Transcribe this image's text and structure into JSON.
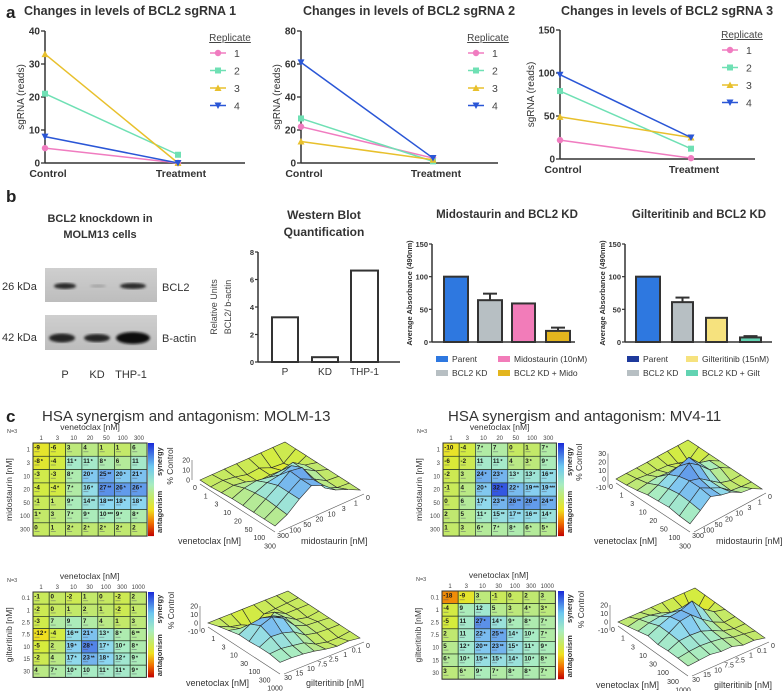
{
  "panel_labels": {
    "a": "a",
    "b": "b",
    "c": "c"
  },
  "blot": {
    "title": [
      "BCL2 knockdown in",
      "MOLM13 cells"
    ],
    "markers": [
      "26 kDa",
      "42 kDa"
    ],
    "proteins": [
      "BCL2",
      "B-actin"
    ],
    "lanes": [
      "P",
      "KD",
      "THP-1"
    ]
  },
  "panel_c_titles": [
    "HSA  synergism and antagonism: MOLM-13",
    "HSA  synergism and antagonism: MV4-11"
  ],
  "chart_data": [
    {
      "type": "line",
      "title": "Changes in levels of BCL2 sgRNA 1",
      "ylabel": "sgRNA (reads)",
      "categories": [
        "Control",
        "Treatment"
      ],
      "ylim": [
        0,
        40
      ],
      "yticks": [
        0,
        10,
        20,
        30,
        40
      ],
      "legend_title": "Replicate",
      "series": [
        {
          "name": "1",
          "color": "#f07cc0",
          "marker": "circle",
          "values": [
            4.5,
            0
          ]
        },
        {
          "name": "2",
          "color": "#6fe0b4",
          "marker": "square",
          "values": [
            21,
            2.5
          ]
        },
        {
          "name": "3",
          "color": "#e8c02c",
          "marker": "triangle-up",
          "values": [
            33,
            0
          ]
        },
        {
          "name": "4",
          "color": "#2a56d6",
          "marker": "triangle-down",
          "values": [
            8,
            0
          ]
        }
      ]
    },
    {
      "type": "line",
      "title": "Changes in levels of BCL2 sgRNA 2",
      "ylabel": "sgRNA (reads)",
      "categories": [
        "Control",
        "Treatment"
      ],
      "ylim": [
        0,
        80
      ],
      "yticks": [
        0,
        20,
        40,
        60,
        80
      ],
      "legend_title": "Replicate",
      "series": [
        {
          "name": "1",
          "color": "#f07cc0",
          "marker": "circle",
          "values": [
            22,
            3
          ]
        },
        {
          "name": "2",
          "color": "#6fe0b4",
          "marker": "square",
          "values": [
            27,
            1
          ]
        },
        {
          "name": "3",
          "color": "#e8c02c",
          "marker": "triangle-up",
          "values": [
            13,
            2
          ]
        },
        {
          "name": "4",
          "color": "#2a56d6",
          "marker": "triangle-down",
          "values": [
            61,
            3
          ]
        }
      ]
    },
    {
      "type": "line",
      "title": "Changes in levels of BCL2 sgRNA 3",
      "ylabel": "sgRNA (reads)",
      "categories": [
        "Control",
        "Treatment"
      ],
      "ylim": [
        0,
        150
      ],
      "yticks": [
        0,
        50,
        100,
        150
      ],
      "legend_title": "Replicate",
      "series": [
        {
          "name": "1",
          "color": "#f07cc0",
          "marker": "circle",
          "values": [
            22,
            1
          ]
        },
        {
          "name": "2",
          "color": "#6fe0b4",
          "marker": "square",
          "values": [
            79,
            12
          ]
        },
        {
          "name": "3",
          "color": "#e8c02c",
          "marker": "triangle-up",
          "values": [
            49,
            25
          ]
        },
        {
          "name": "4",
          "color": "#2a56d6",
          "marker": "triangle-down",
          "values": [
            98,
            25
          ]
        }
      ]
    },
    {
      "type": "bar",
      "title": [
        "Western Blot",
        "Quantification"
      ],
      "ylabel": [
        "Relative Units",
        "BCL2/ b-actin"
      ],
      "categories": [
        "P",
        "KD",
        "THP-1"
      ],
      "values": [
        3.25,
        0.35,
        6.65
      ],
      "ylim": [
        0,
        8
      ],
      "yticks": [
        0,
        2,
        4,
        6,
        8
      ],
      "colors": [
        "#ffffff",
        "#ffffff",
        "#ffffff"
      ]
    },
    {
      "type": "bar",
      "title": "Midostaurin and BCL2 KD",
      "ylabel": "Average Absorbance (490nm)",
      "categories": [
        "Parent",
        "BCL2 KD",
        "Midostaurin (10nM)",
        "BCL2 KD + Mido"
      ],
      "values": [
        100,
        64,
        59,
        17
      ],
      "error_upper": [
        null,
        74,
        null,
        22
      ],
      "ylim": [
        0,
        150
      ],
      "yticks": [
        0,
        50,
        100,
        150
      ],
      "colors": [
        "#2e78e0",
        "#b7bfc3",
        "#f27cb9",
        "#e3b51e"
      ],
      "legend_colors": [
        "#2e78e0",
        "#b7bfc3",
        "#f27cb9",
        "#e3b51e"
      ],
      "legend": "bottom"
    },
    {
      "type": "bar",
      "title": "Gilteritinib and BCL2 KD",
      "ylabel": "Average Absorbance (490nm)",
      "categories": [
        "Parent",
        "BCL2 KD",
        "Gilteritinib (15nM)",
        "BCL2 KD + Gilt"
      ],
      "values": [
        100,
        61,
        37,
        7
      ],
      "error_upper": [
        null,
        68,
        null,
        9
      ],
      "ylim": [
        0,
        150
      ],
      "yticks": [
        0,
        50,
        100,
        150
      ],
      "colors": [
        "#2e78e0",
        "#b7bfc3",
        "#f6e27e",
        "#62d3b2"
      ],
      "legend_colors": [
        "#1e3a9c",
        "#b7bfc3",
        "#f6e27e",
        "#62d3b2"
      ],
      "legend": "bottom"
    },
    {
      "type": "heatmap",
      "n_label": "N=3",
      "xlabel": "venetoclax [nM]",
      "ylabel": "midostaurin [nM]",
      "xticks": [
        "1",
        "3",
        "10",
        "20",
        "50",
        "100",
        "300"
      ],
      "yticks": [
        "1",
        "3",
        "10",
        "20",
        "50",
        "100",
        "300"
      ],
      "colorbar": [
        "synergy",
        "antagonism"
      ],
      "values": [
        [
          -9,
          -6,
          3,
          4,
          1,
          1,
          6
        ],
        [
          -8,
          -4,
          11,
          11,
          8,
          6,
          11
        ],
        [
          -3,
          -3,
          8,
          20,
          25,
          20,
          21
        ],
        [
          -4,
          -4,
          7,
          16,
          27,
          26,
          26
        ],
        [
          -1,
          1,
          9,
          14,
          18,
          18,
          18
        ],
        [
          1,
          3,
          7,
          9,
          10,
          9,
          8
        ],
        [
          0,
          1,
          2,
          2,
          2,
          2,
          2
        ]
      ],
      "stars": [
        [
          "",
          "",
          "",
          "",
          "",
          "",
          ""
        ],
        [
          "*",
          "",
          "*",
          "*",
          "*",
          "",
          ""
        ],
        [
          "",
          "",
          "*",
          "*",
          "**",
          "*",
          "*"
        ],
        [
          "",
          "*",
          "*",
          "*",
          "**",
          "*",
          "*"
        ],
        [
          "",
          "",
          "*",
          "**",
          "***",
          "*",
          "*"
        ],
        [
          "*",
          "",
          "*",
          "*",
          "***",
          "*",
          "*"
        ],
        [
          "",
          "",
          "*",
          "*",
          "*",
          "*",
          ""
        ]
      ]
    },
    {
      "type": "surface",
      "xlabel": "venetoclax [nM]",
      "ylabel": "midostaurin [nM]",
      "zlabel": "% Control",
      "xticks": [
        "0",
        "1",
        "3",
        "10",
        "20",
        "50",
        "100",
        "300"
      ],
      "yticks": [
        "0",
        "1",
        "3",
        "10",
        "20",
        "50",
        "100",
        "300"
      ],
      "zticks": [
        0,
        10,
        20
      ]
    },
    {
      "type": "heatmap",
      "n_label": "N=3",
      "xlabel": "venetoclax [nM]",
      "ylabel": "gilteritinib [nM]",
      "xticks": [
        "1",
        "3",
        "10",
        "30",
        "100",
        "300",
        "1000"
      ],
      "yticks": [
        "0.1",
        "1",
        "2.5",
        "7.5",
        "10",
        "15",
        "30"
      ],
      "colorbar": [
        "synergy",
        "antagonism"
      ],
      "values": [
        [
          -1,
          0,
          -2,
          1,
          0,
          -2,
          2
        ],
        [
          -2,
          0,
          1,
          2,
          1,
          -2,
          1
        ],
        [
          -3,
          7,
          9,
          7,
          4,
          1,
          3
        ],
        [
          -12,
          -4,
          16,
          21,
          13,
          8,
          6
        ],
        [
          -5,
          2,
          19,
          28,
          17,
          10,
          8
        ],
        [
          -2,
          4,
          17,
          23,
          18,
          12,
          9
        ],
        [
          4,
          7,
          10,
          10,
          11,
          11,
          9
        ]
      ],
      "stars": [
        [
          "",
          "",
          "",
          "",
          "",
          "",
          ""
        ],
        [
          "",
          "",
          "",
          "",
          "",
          "",
          ""
        ],
        [
          "",
          "",
          "",
          "",
          "",
          "",
          ""
        ],
        [
          "*",
          "",
          "**",
          "*",
          "*",
          "*",
          "**"
        ],
        [
          "",
          "",
          "*",
          "*",
          "*",
          "*",
          "*"
        ],
        [
          "",
          "",
          "*",
          "**",
          "*",
          "*",
          "*"
        ],
        [
          "",
          "*",
          "*",
          "",
          "*",
          "*",
          "*"
        ]
      ]
    },
    {
      "type": "surface",
      "xlabel": "venetoclax [nM]",
      "ylabel": "gilteritinib [nM]",
      "zlabel": "% Control",
      "xticks": [
        "0",
        "1",
        "3",
        "10",
        "30",
        "100",
        "300",
        "1000"
      ],
      "yticks": [
        "0",
        "0.1",
        "1",
        "2.5",
        "7.5",
        "10",
        "15",
        "30"
      ],
      "zticks": [
        -10,
        0,
        10,
        20
      ]
    },
    {
      "type": "heatmap",
      "n_label": "N=3",
      "xlabel": "venetoclax [nM]",
      "ylabel": "midostaurin [nM]",
      "xticks": [
        "1",
        "3",
        "10",
        "20",
        "50",
        "100",
        "300"
      ],
      "yticks": [
        "1",
        "3",
        "10",
        "20",
        "50",
        "100",
        "300"
      ],
      "colorbar": [
        "synergy",
        "antagonism"
      ],
      "values": [
        [
          -10,
          -4,
          7,
          7,
          0,
          1,
          7
        ],
        [
          -6,
          -2,
          11,
          11,
          4,
          3,
          9
        ],
        [
          -2,
          3,
          24,
          23,
          13,
          13,
          16
        ],
        [
          -1,
          4,
          20,
          32,
          22,
          19,
          19
        ],
        [
          0,
          6,
          17,
          23,
          26,
          26,
          24
        ],
        [
          2,
          5,
          11,
          15,
          17,
          16,
          14
        ],
        [
          1,
          3,
          6,
          7,
          8,
          6,
          5
        ]
      ],
      "stars": [
        [
          "",
          "",
          "*",
          "",
          "",
          "",
          "*"
        ],
        [
          "",
          "",
          "",
          "*",
          "",
          "*",
          "*"
        ],
        [
          "",
          "",
          "*",
          "*",
          "*",
          "*",
          "**"
        ],
        [
          "",
          "",
          "*",
          "*",
          "*",
          "***",
          "***"
        ],
        [
          "",
          "",
          "*",
          "**",
          "**",
          "**",
          "**"
        ],
        [
          "",
          "",
          "*",
          "**",
          "**",
          "**",
          "*"
        ],
        [
          "",
          "",
          "*",
          "*",
          "*",
          "*",
          "*"
        ]
      ]
    },
    {
      "type": "surface",
      "xlabel": "venetoclax [nM]",
      "ylabel": "midostaurin [nM]",
      "zlabel": "% Control",
      "xticks": [
        "0",
        "1",
        "3",
        "10",
        "20",
        "50",
        "100",
        "300"
      ],
      "yticks": [
        "0",
        "1",
        "3",
        "10",
        "20",
        "50",
        "100",
        "300"
      ],
      "zticks": [
        -10,
        0,
        10,
        20,
        30
      ]
    },
    {
      "type": "heatmap",
      "n_label": "N=3",
      "xlabel": "venetoclax [nM]",
      "ylabel": "gilteritinib [nM]",
      "xticks": [
        "1",
        "3",
        "10",
        "30",
        "100",
        "300",
        "1000"
      ],
      "yticks": [
        "0.1",
        "1",
        "2.5",
        "7.5",
        "10",
        "15",
        "30"
      ],
      "colorbar": [
        "synergy",
        "antagonism"
      ],
      "values": [
        [
          -18,
          -9,
          3,
          -1,
          0,
          2,
          3
        ],
        [
          -4,
          9,
          12,
          5,
          3,
          4,
          3
        ],
        [
          -5,
          11,
          27,
          14,
          9,
          8,
          7
        ],
        [
          2,
          11,
          22,
          25,
          14,
          10,
          7
        ],
        [
          5,
          12,
          20,
          23,
          15,
          11,
          9
        ],
        [
          6,
          10,
          15,
          15,
          14,
          10,
          8
        ],
        [
          3,
          6,
          9,
          7,
          8,
          8,
          7
        ]
      ],
      "stars": [
        [
          "",
          "",
          "",
          "",
          "",
          "",
          ""
        ],
        [
          "",
          "",
          "",
          "",
          "",
          "*",
          "*"
        ],
        [
          "",
          "",
          "*",
          "*",
          "*",
          "*",
          "*"
        ],
        [
          "",
          "",
          "*",
          "**",
          "*",
          "*",
          "*"
        ],
        [
          "",
          "*",
          "**",
          "**",
          "*",
          "*",
          "*"
        ],
        [
          "*",
          "*",
          "**",
          "*",
          "*",
          "*",
          "*"
        ],
        [
          "",
          "*",
          "*",
          "*",
          "*",
          "*",
          "*"
        ]
      ]
    },
    {
      "type": "surface",
      "xlabel": "venetoclax [nM]",
      "ylabel": "gilteritinib [nM]",
      "zlabel": "% Control",
      "xticks": [
        "0",
        "1",
        "3",
        "10",
        "30",
        "100",
        "300",
        "1000"
      ],
      "yticks": [
        "0",
        "0.1",
        "1",
        "2.5",
        "7.5",
        "10",
        "15",
        "30"
      ],
      "zticks": [
        -10,
        0,
        10,
        20
      ]
    }
  ]
}
